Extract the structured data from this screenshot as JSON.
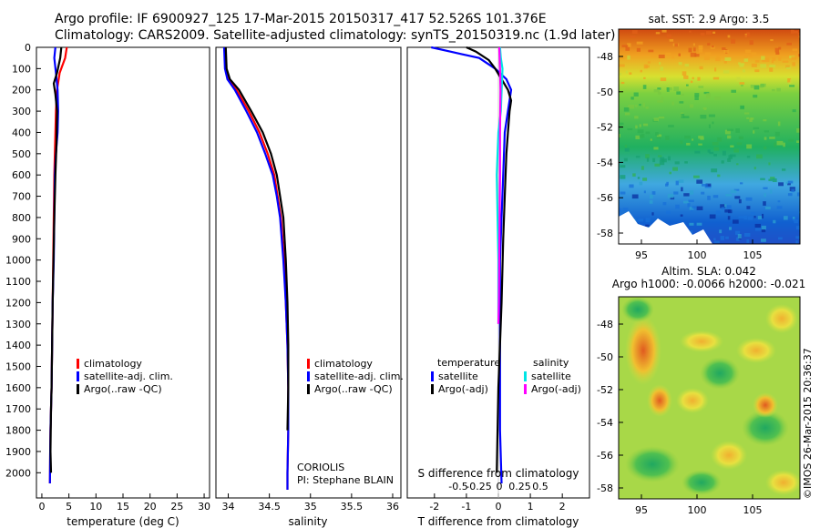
{
  "header": {
    "line1": "Argo profile: IF 6900927_125 17-Mar-2015 20150317_417 52.526S 101.376E",
    "line2": "Climatology: CARS2009. Satellite-adjusted climatology: synTS_20150319.nc (1.9d later)"
  },
  "colors": {
    "climatology": "#ff0000",
    "satellite": "#0000ff",
    "argo": "#000000",
    "sat_salinity": "#00e5e5",
    "argo_adj_salinity": "#ff00ff"
  },
  "chart_data": [
    {
      "type": "line",
      "panel": "temperature",
      "xlabel": "temperature (deg C)",
      "xlim": [
        -1,
        31
      ],
      "xticks": [
        0,
        5,
        10,
        15,
        20,
        25,
        30
      ],
      "ylim": [
        2080,
        0
      ],
      "yticks": [
        0,
        100,
        200,
        300,
        400,
        500,
        600,
        700,
        800,
        900,
        1000,
        1100,
        1200,
        1300,
        1400,
        1500,
        1600,
        1700,
        1800,
        1900,
        2000
      ],
      "legend": [
        "climatology",
        "satellite-adj. clim.",
        "Argo(..raw -QC)"
      ],
      "series": [
        {
          "name": "climatology",
          "x": [
            4.6,
            4.3,
            3.3,
            2.8,
            2.6,
            2.5,
            2.4,
            2.3,
            2.2,
            2.1,
            2.0,
            1.9,
            1.8,
            1.7,
            1.6,
            1.55,
            1.5
          ],
          "y": [
            0,
            50,
            120,
            200,
            300,
            400,
            500,
            600,
            800,
            1000,
            1200,
            1400,
            1600,
            1700,
            1800,
            1900,
            2050
          ]
        },
        {
          "name": "satellite-adj. clim.",
          "x": [
            2.5,
            2.3,
            2.6,
            2.9,
            3.0,
            2.9,
            2.6,
            2.4,
            2.3,
            2.2,
            2.0,
            1.9,
            1.8,
            1.7,
            1.6,
            1.55,
            1.5
          ],
          "y": [
            0,
            50,
            120,
            200,
            300,
            400,
            500,
            600,
            800,
            1000,
            1200,
            1400,
            1600,
            1700,
            1800,
            1900,
            2050
          ]
        },
        {
          "name": "Argo(..raw -QC)",
          "x": [
            3.6,
            3.4,
            2.8,
            2.2,
            2.5,
            2.8,
            2.7,
            2.5,
            2.3,
            2.15,
            2.0,
            1.9,
            1.8,
            1.7,
            1.65,
            1.6,
            1.7
          ],
          "y": [
            0,
            50,
            120,
            170,
            220,
            300,
            450,
            600,
            800,
            1000,
            1200,
            1400,
            1600,
            1700,
            1800,
            1900,
            2000
          ]
        }
      ]
    },
    {
      "type": "line",
      "panel": "salinity",
      "xlabel": "salinity",
      "xlim": [
        33.85,
        36.1
      ],
      "xticks": [
        34,
        34.5,
        35,
        35.5,
        36
      ],
      "xtick_labels": [
        "34",
        "34.5",
        "35",
        "35.5",
        "36"
      ],
      "ylim": [
        2080,
        0
      ],
      "legend": [
        "climatology",
        "satellite-adj. clim.",
        "Argo(..raw -QC)"
      ],
      "annotation": [
        "CORIOLIS",
        "PI: Stephane BLAIN"
      ],
      "series": [
        {
          "name": "climatology",
          "x": [
            33.96,
            33.97,
            34.0,
            34.1,
            34.25,
            34.38,
            34.48,
            34.56,
            34.6,
            34.64,
            34.68,
            34.7,
            34.72,
            34.73,
            34.73,
            34.72,
            34.72
          ],
          "y": [
            0,
            100,
            150,
            200,
            300,
            400,
            500,
            600,
            700,
            800,
            1000,
            1200,
            1400,
            1600,
            1800,
            2000,
            2080
          ]
        },
        {
          "name": "satellite-adj. clim.",
          "x": [
            33.95,
            33.96,
            33.99,
            34.08,
            34.22,
            34.35,
            34.45,
            34.54,
            34.59,
            34.63,
            34.67,
            34.7,
            34.72,
            34.73,
            34.73,
            34.72,
            34.72
          ],
          "y": [
            0,
            100,
            150,
            200,
            300,
            400,
            500,
            600,
            700,
            800,
            1000,
            1200,
            1400,
            1600,
            1800,
            2000,
            2080
          ]
        },
        {
          "name": "Argo(..raw -QC)",
          "x": [
            33.97,
            33.98,
            34.02,
            34.13,
            34.28,
            34.42,
            34.52,
            34.59,
            34.63,
            34.67,
            34.7,
            34.72,
            34.73,
            34.73,
            34.72
          ],
          "y": [
            0,
            100,
            150,
            200,
            300,
            400,
            500,
            600,
            700,
            800,
            1000,
            1200,
            1400,
            1600,
            1800
          ]
        }
      ]
    },
    {
      "type": "line",
      "panel": "difference",
      "xlabel": "T difference from climatology",
      "xlim": [
        -2.85,
        2.85
      ],
      "xticks": [
        -2,
        -1,
        0,
        1,
        2
      ],
      "top_axis_label": "S difference from climatology",
      "top_ticks": [
        "-0.5",
        "-0.25",
        "0",
        "0.25",
        "0.5"
      ],
      "ylim": [
        2080,
        0
      ],
      "legend_temperature": {
        "title": "temperature",
        "items": [
          "satellite",
          "Argo(-adj)"
        ]
      },
      "legend_salinity": {
        "title": "salinity",
        "items": [
          "satellite",
          "Argo(-adj)"
        ]
      },
      "series": [
        {
          "name": "temperature satellite",
          "x": [
            -2.1,
            -1.5,
            -0.6,
            -0.1,
            0.25,
            0.4,
            0.3,
            0.2,
            0.15,
            0.1,
            0.05,
            0.05,
            0.05,
            0.05,
            0.1
          ],
          "y": [
            0,
            20,
            50,
            100,
            150,
            200,
            300,
            400,
            600,
            800,
            1000,
            1200,
            1500,
            1800,
            2050
          ]
        },
        {
          "name": "temperature Argo(-adj)",
          "x": [
            -1.0,
            -0.7,
            -0.3,
            -0.1,
            0.1,
            0.3,
            0.4,
            0.35,
            0.3,
            0.25,
            0.2,
            0.15,
            0.1,
            0.0,
            -0.05
          ],
          "y": [
            0,
            20,
            60,
            100,
            150,
            200,
            250,
            300,
            400,
            500,
            700,
            900,
            1200,
            1600,
            2000
          ]
        },
        {
          "name": "salinity satellite",
          "x": [
            0.02,
            0.03,
            0.05,
            0.04,
            0.03,
            0.0,
            -0.01,
            -0.02,
            -0.01,
            0.0,
            0.0,
            0.0
          ],
          "y": [
            0,
            50,
            100,
            200,
            300,
            400,
            500,
            600,
            800,
            1000,
            1200,
            1300
          ]
        },
        {
          "name": "salinity Argo(-adj)",
          "x": [
            0.01,
            0.015,
            0.02,
            0.025,
            0.02,
            0.02,
            0.015,
            0.01,
            0.005,
            0.0
          ],
          "y": [
            0,
            50,
            100,
            200,
            400,
            600,
            800,
            1000,
            1200,
            1300
          ]
        }
      ]
    },
    {
      "type": "heatmap",
      "panel": "sst-map",
      "title": "sat. SST: 2.9 Argo: 3.5",
      "xticks": [
        "95",
        "100",
        "105"
      ],
      "yticks": [
        "-48",
        "-50",
        "-52",
        "-54",
        "-56",
        "-58"
      ]
    },
    {
      "type": "heatmap",
      "panel": "sla-map",
      "title": [
        "Altim. SLA: 0.042",
        "Argo h1000: -0.0066 h2000: -0.021"
      ],
      "xticks": [
        "95",
        "100",
        "105"
      ],
      "yticks": [
        "-48",
        "-50",
        "-52",
        "-54",
        "-56",
        "-58"
      ]
    }
  ],
  "footer": {
    "credit": "©IMOS 26-Mar-2015 20:36:37"
  }
}
